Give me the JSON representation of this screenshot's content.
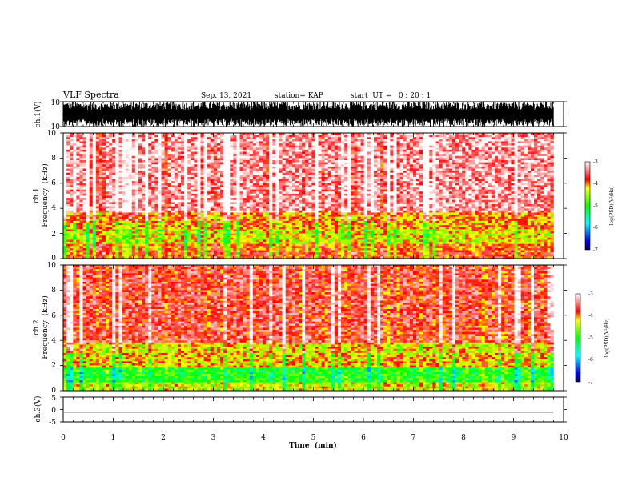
{
  "header": {
    "title": "VLF Spectra",
    "date": "Sep. 13, 2021",
    "station": "station= KAP",
    "start": "start  UT =   0 : 20 : 1"
  },
  "chart_data": [
    {
      "type": "line",
      "id": "ch1-waveform",
      "ylabel": "ch.1(V)",
      "ylim": [
        -10,
        10
      ],
      "yticks": [
        "10",
        "-10"
      ],
      "xlim": [
        0,
        10
      ],
      "series": [
        {
          "color": "#000000",
          "y_min": -10,
          "y_max": 10,
          "note_text": ""
        }
      ]
    },
    {
      "type": "heatmap",
      "id": "ch1-spectrogram",
      "ylabel_lines": [
        "ch.1",
        "Frequency  (kHz)"
      ],
      "ylim": [
        0,
        10
      ],
      "yticks": [
        "0",
        "2",
        "4",
        "6",
        "8",
        "10"
      ],
      "xlim": [
        0,
        10
      ],
      "data_end_min": 9.8,
      "colorbar": {
        "label": "log(PSD)(V²/Hz)",
        "min": -7,
        "max": -3,
        "ticks": [
          "-3",
          "-4",
          "-5",
          "-6",
          "-7"
        ]
      },
      "bands_khz": [
        {
          "from": 0.0,
          "to": 0.5,
          "level": -3.8
        },
        {
          "from": 0.5,
          "to": 1.2,
          "level": -3.9
        },
        {
          "from": 1.2,
          "to": 2.4,
          "level": -4.3
        },
        {
          "from": 2.4,
          "to": 3.6,
          "level": -4.0
        },
        {
          "from": 3.6,
          "to": 10.0,
          "level": -3.3
        }
      ]
    },
    {
      "type": "heatmap",
      "id": "ch2-spectrogram",
      "ylabel_lines": [
        "ch.2",
        "Frequency  (kHz)"
      ],
      "ylim": [
        0,
        10
      ],
      "yticks": [
        "0",
        "2",
        "4",
        "6",
        "8",
        "10"
      ],
      "xlim": [
        0,
        10
      ],
      "data_end_min": 9.8,
      "colorbar": {
        "label": "log(PSD)(V²/Hz)",
        "min": -7,
        "max": -3,
        "ticks": [
          "-3",
          "-4",
          "-5",
          "-6",
          "-7"
        ]
      },
      "bands_khz": [
        {
          "from": 0.0,
          "to": 0.6,
          "level": -4.4
        },
        {
          "from": 0.6,
          "to": 1.9,
          "level": -5.0
        },
        {
          "from": 1.9,
          "to": 3.8,
          "level": -4.2
        },
        {
          "from": 3.8,
          "to": 10.0,
          "level": -3.6
        }
      ]
    },
    {
      "type": "line",
      "id": "ch3-waveform",
      "ylabel": "ch.3(V)",
      "ylim": [
        -5,
        5
      ],
      "yticks": [
        "5",
        "0",
        "-5"
      ],
      "xlim": [
        0,
        10
      ],
      "xlabel": "Time  (min)",
      "xticks": [
        "0",
        "1",
        "2",
        "3",
        "4",
        "5",
        "6",
        "7",
        "8",
        "9",
        "10"
      ],
      "series": [
        {
          "color": "#000000",
          "y_min": -1.2,
          "y_max": -0.8
        }
      ]
    }
  ]
}
